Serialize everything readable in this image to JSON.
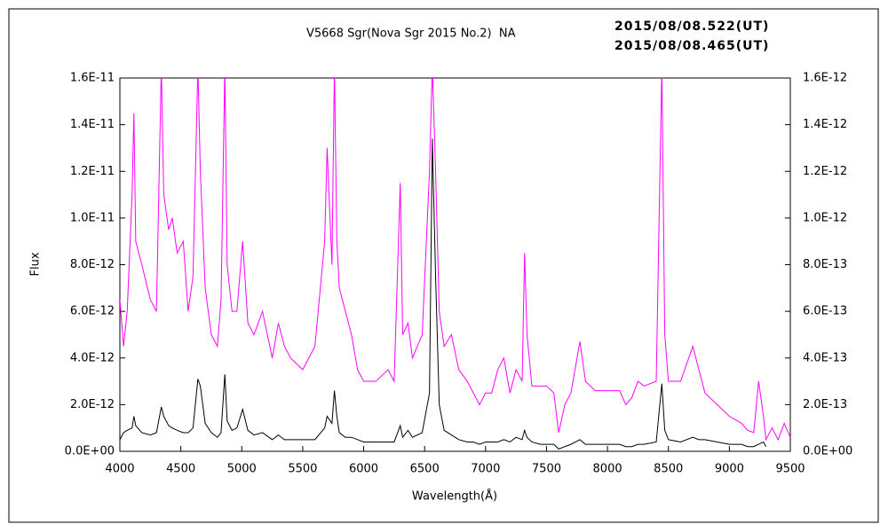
{
  "chart_data": {
    "type": "line",
    "title": "V5668 Sgr(Nova Sgr 2015 No.2)  NA",
    "x_label": "Wavelength(Å)",
    "y_label": "Flux",
    "x": [
      4000,
      4030,
      4060,
      4100,
      4115,
      4130,
      4180,
      4250,
      4300,
      4340,
      4360,
      4400,
      4430,
      4470,
      4520,
      4560,
      4600,
      4640,
      4660,
      4700,
      4750,
      4800,
      4830,
      4861,
      4880,
      4920,
      4960,
      5007,
      5050,
      5100,
      5170,
      5250,
      5300,
      5350,
      5400,
      5500,
      5600,
      5680,
      5700,
      5740,
      5760,
      5780,
      5800,
      5850,
      5900,
      5950,
      6000,
      6100,
      6200,
      6250,
      6300,
      6320,
      6364,
      6400,
      6480,
      6540,
      6563,
      6590,
      6620,
      6660,
      6720,
      6780,
      6850,
      6900,
      6950,
      7000,
      7050,
      7100,
      7150,
      7200,
      7250,
      7300,
      7320,
      7340,
      7380,
      7450,
      7500,
      7560,
      7600,
      7650,
      7700,
      7774,
      7820,
      7900,
      8000,
      8100,
      8150,
      8200,
      8250,
      8300,
      8400,
      8446,
      8470,
      8500,
      8600,
      8700,
      8750,
      8800,
      8900,
      9000,
      9100,
      9150,
      9200,
      9240,
      9280,
      9300,
      9350,
      9400,
      9450,
      9500
    ],
    "series": [
      {
        "name": "2015/08/08.522(UT)",
        "color": "#ff00ff",
        "axis": "y2",
        "values": [
          6.5e-13,
          4.5e-13,
          6e-13,
          1.1e-12,
          1.45e-12,
          9e-13,
          8e-13,
          6.5e-13,
          6e-13,
          1.65e-12,
          1.1e-12,
          9.5e-13,
          1e-12,
          8.5e-13,
          9e-13,
          6e-13,
          7.5e-13,
          1.65e-12,
          1.2e-12,
          7e-13,
          5e-13,
          4.5e-13,
          6.5e-13,
          1.65e-12,
          8e-13,
          6e-13,
          6e-13,
          9e-13,
          5.5e-13,
          5e-13,
          6e-13,
          4e-13,
          5.5e-13,
          4.5e-13,
          4e-13,
          3.5e-13,
          4.5e-13,
          9e-13,
          1.3e-12,
          8e-13,
          1.65e-12,
          9e-13,
          7e-13,
          6e-13,
          5e-13,
          3.5e-13,
          3e-13,
          3e-13,
          3.5e-13,
          3e-13,
          1.15e-12,
          5e-13,
          5.5e-13,
          4e-13,
          5e-13,
          1.2e-12,
          1.65e-12,
          1.2e-12,
          6e-13,
          4.5e-13,
          5e-13,
          3.5e-13,
          3e-13,
          2.5e-13,
          2e-13,
          2.5e-13,
          2.5e-13,
          3.5e-13,
          4e-13,
          2.5e-13,
          3.5e-13,
          3e-13,
          8.5e-13,
          5e-13,
          2.8e-13,
          2.8e-13,
          2.8e-13,
          2.5e-13,
          8e-14,
          2e-13,
          2.5e-13,
          4.7e-13,
          3e-13,
          2.6e-13,
          2.6e-13,
          2.6e-13,
          2e-13,
          2.3e-13,
          3e-13,
          2.8e-13,
          3e-13,
          1.65e-12,
          5e-13,
          3e-13,
          3e-13,
          4.5e-13,
          3.5e-13,
          2.5e-13,
          2e-13,
          1.5e-13,
          1.2e-13,
          9e-14,
          8e-14,
          3e-13,
          1.5e-13,
          5e-14,
          1e-13,
          5e-14,
          1.2e-13,
          6e-14
        ]
      },
      {
        "name": "2015/08/08.465(UT)",
        "color": "#000000",
        "values": [
          5e-13,
          8e-13,
          9e-13,
          1e-12,
          1.5e-12,
          1.1e-12,
          8e-13,
          7e-13,
          8e-13,
          1.9e-12,
          1.5e-12,
          1.1e-12,
          1e-12,
          9e-13,
          8e-13,
          8e-13,
          1e-12,
          3.1e-12,
          2.8e-12,
          1.2e-12,
          8e-13,
          6e-13,
          8e-13,
          3.3e-12,
          1.3e-12,
          9e-13,
          1e-12,
          1.8e-12,
          9e-13,
          7e-13,
          8e-13,
          5e-13,
          7e-13,
          5e-13,
          5e-13,
          5e-13,
          5e-13,
          1e-12,
          1.5e-12,
          1.2e-12,
          2.6e-12,
          1.5e-12,
          8e-13,
          6e-13,
          6e-13,
          5e-13,
          4e-13,
          4e-13,
          4e-13,
          4e-13,
          1.1e-12,
          6e-13,
          9e-13,
          6e-13,
          8e-13,
          2.5e-12,
          1.34e-11,
          7.5e-12,
          2e-12,
          9e-13,
          7e-13,
          5e-13,
          4e-13,
          4e-13,
          3e-13,
          4e-13,
          4e-13,
          4e-13,
          5e-13,
          4e-13,
          6e-13,
          5e-13,
          9e-13,
          6e-13,
          4e-13,
          3e-13,
          3e-13,
          3e-13,
          1e-13,
          2e-13,
          3e-13,
          5e-13,
          3e-13,
          3e-13,
          3e-13,
          3e-13,
          2e-13,
          2e-13,
          3e-13,
          3e-13,
          4e-13,
          2.9e-12,
          9e-13,
          5e-13,
          4e-13,
          6e-13,
          5e-13,
          5e-13,
          4e-13,
          3e-13,
          3e-13,
          2e-13,
          2e-13,
          3e-13,
          4e-13,
          2e-13,
          null,
          null,
          null,
          null
        ]
      }
    ],
    "xlim": [
      4000,
      9500
    ],
    "xticks": [
      4000,
      4500,
      5000,
      5500,
      6000,
      6500,
      7000,
      7500,
      8000,
      8500,
      9000,
      9500
    ],
    "ylim": [
      0,
      1.6e-11
    ],
    "yticks": [
      {
        "value": 0,
        "label": "0.0E+00"
      },
      {
        "value": 2e-12,
        "label": "2.0E-12"
      },
      {
        "value": 4e-12,
        "label": "4.0E-12"
      },
      {
        "value": 6e-12,
        "label": "6.0E-12"
      },
      {
        "value": 8e-12,
        "label": "8.0E-12"
      },
      {
        "value": 1e-11,
        "label": "1.0E-11"
      },
      {
        "value": 1.2e-11,
        "label": "1.2E-11"
      },
      {
        "value": 1.4e-11,
        "label": "1.4E-11"
      },
      {
        "value": 1.6e-11,
        "label": "1.6E-11"
      }
    ],
    "y2lim": [
      0,
      1.6e-12
    ],
    "y2ticks": [
      {
        "value": 0,
        "label": "0.0E+00"
      },
      {
        "value": 2e-13,
        "label": "2.0E-13"
      },
      {
        "value": 4e-13,
        "label": "4.0E-13"
      },
      {
        "value": 6e-13,
        "label": "6.0E-13"
      },
      {
        "value": 8e-13,
        "label": "8.0E-13"
      },
      {
        "value": 1e-12,
        "label": "1.0E-12"
      },
      {
        "value": 1.2e-12,
        "label": "1.2E-12"
      },
      {
        "value": 1.4e-12,
        "label": "1.4E-12"
      },
      {
        "value": 1.6e-12,
        "label": "1.6E-12"
      }
    ],
    "grid": false,
    "legend": "top-right"
  }
}
